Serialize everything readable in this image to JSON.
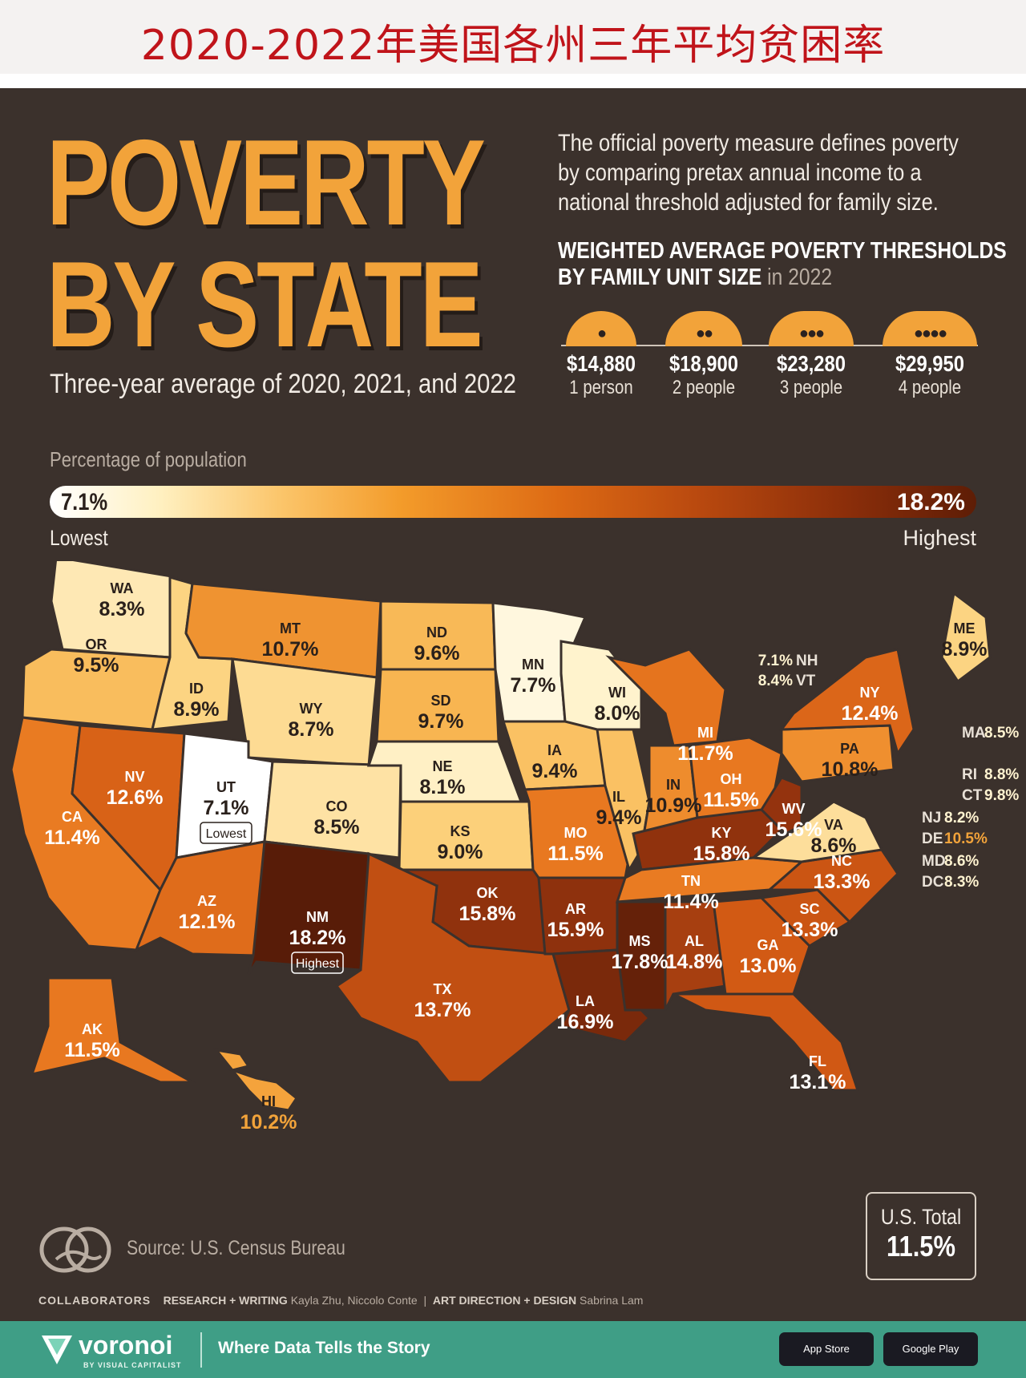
{
  "banner": {
    "title_cn": "2020-2022年美国各州三年平均贫困率"
  },
  "header": {
    "title_line1": "POVERTY",
    "title_line2": "BY STATE",
    "subtitle": "Three-year average of 2020, 2021, and 2022",
    "definition_lines": [
      "The official poverty measure defines poverty",
      "by comparing pretax annual income to a",
      "national threshold adjusted for family size."
    ],
    "thresholds_title_line1": "WEIGHTED AVERAGE POVERTY THRESHOLDS",
    "thresholds_title_line2": "BY FAMILY UNIT SIZE",
    "thresholds_year": "in 2022",
    "thresholds": [
      {
        "amount": "$14,880",
        "label": "1 person",
        "people": 1
      },
      {
        "amount": "$18,900",
        "label": "2 people",
        "people": 2
      },
      {
        "amount": "$23,280",
        "label": "3 people",
        "people": 3
      },
      {
        "amount": "$29,950",
        "label": "4 people",
        "people": 4
      }
    ]
  },
  "legend": {
    "title": "Percentage of population",
    "low_value": "7.1%",
    "high_value": "18.2%",
    "low_label": "Lowest",
    "high_label": "Highest"
  },
  "states": [
    {
      "abbr": "WA",
      "value": "8.3%"
    },
    {
      "abbr": "OR",
      "value": "9.5%"
    },
    {
      "abbr": "CA",
      "value": "11.4%"
    },
    {
      "abbr": "ID",
      "value": "8.9%"
    },
    {
      "abbr": "NV",
      "value": "12.6%"
    },
    {
      "abbr": "MT",
      "value": "10.7%"
    },
    {
      "abbr": "WY",
      "value": "8.7%"
    },
    {
      "abbr": "UT",
      "value": "7.1%",
      "tag": "Lowest"
    },
    {
      "abbr": "AZ",
      "value": "12.1%"
    },
    {
      "abbr": "CO",
      "value": "8.5%"
    },
    {
      "abbr": "NM",
      "value": "18.2%",
      "tag": "Highest"
    },
    {
      "abbr": "ND",
      "value": "9.6%"
    },
    {
      "abbr": "SD",
      "value": "9.7%"
    },
    {
      "abbr": "NE",
      "value": "8.1%"
    },
    {
      "abbr": "KS",
      "value": "9.0%"
    },
    {
      "abbr": "OK",
      "value": "15.8%"
    },
    {
      "abbr": "TX",
      "value": "13.7%"
    },
    {
      "abbr": "MN",
      "value": "7.7%"
    },
    {
      "abbr": "IA",
      "value": "9.4%"
    },
    {
      "abbr": "MO",
      "value": "11.5%"
    },
    {
      "abbr": "AR",
      "value": "15.9%"
    },
    {
      "abbr": "LA",
      "value": "16.9%"
    },
    {
      "abbr": "WI",
      "value": "8.0%"
    },
    {
      "abbr": "IL",
      "value": "9.4%"
    },
    {
      "abbr": "MI",
      "value": "11.7%"
    },
    {
      "abbr": "IN",
      "value": "10.9%"
    },
    {
      "abbr": "OH",
      "value": "11.5%"
    },
    {
      "abbr": "KY",
      "value": "15.8%"
    },
    {
      "abbr": "TN",
      "value": "11.4%"
    },
    {
      "abbr": "MS",
      "value": "17.8%"
    },
    {
      "abbr": "AL",
      "value": "14.8%"
    },
    {
      "abbr": "GA",
      "value": "13.0%"
    },
    {
      "abbr": "FL",
      "value": "13.1%"
    },
    {
      "abbr": "SC",
      "value": "13.3%"
    },
    {
      "abbr": "NC",
      "value": "13.3%"
    },
    {
      "abbr": "VA",
      "value": "8.6%"
    },
    {
      "abbr": "WV",
      "value": "15.6%"
    },
    {
      "abbr": "PA",
      "value": "10.8%"
    },
    {
      "abbr": "NY",
      "value": "12.4%"
    },
    {
      "abbr": "ME",
      "value": "8.9%"
    },
    {
      "abbr": "AK",
      "value": "11.5%"
    },
    {
      "abbr": "HI",
      "value": "10.2%"
    }
  ],
  "small_states": [
    {
      "abbr": "NH",
      "value": "7.1%"
    },
    {
      "abbr": "VT",
      "value": "8.4%"
    },
    {
      "abbr": "MA",
      "value": "8.5%"
    },
    {
      "abbr": "RI",
      "value": "8.8%"
    },
    {
      "abbr": "CT",
      "value": "9.8%"
    },
    {
      "abbr": "NJ",
      "value": "8.2%"
    },
    {
      "abbr": "DE",
      "value": "10.5%"
    },
    {
      "abbr": "MD",
      "value": "8.6%"
    },
    {
      "abbr": "DC",
      "value": "8.3%"
    }
  ],
  "total": {
    "label": "U.S. Total",
    "value": "11.5%"
  },
  "source": {
    "text": "Source: U.S. Census Bureau"
  },
  "credits": {
    "collaborators": "COLLABORATORS",
    "research_key": "RESEARCH + WRITING",
    "research_names": "Kayla Zhu, Niccolo Conte",
    "separator": "|",
    "art_key": "ART DIRECTION + DESIGN",
    "art_names": "Sabrina Lam"
  },
  "footer": {
    "brand": "voronoi",
    "brand_sub": "BY VISUAL CAPITALIST",
    "tagline": "Where Data Tells the Story",
    "store1": "App Store",
    "store2": "Google Play"
  },
  "colors": {
    "accent": "#f2a33a",
    "background": "#3b312c",
    "footer": "#3f9e86",
    "banner_text": "#c0141a"
  }
}
